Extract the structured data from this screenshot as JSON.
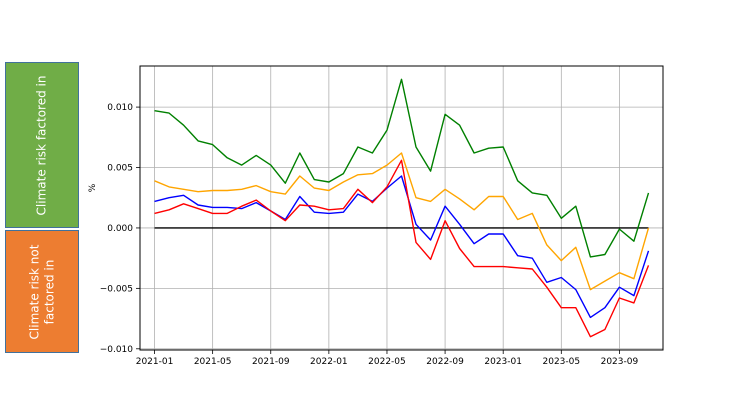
{
  "side_labels": {
    "top": {
      "text": "Climate risk factored in",
      "color": "#70ad47"
    },
    "bottom": {
      "line1": "Climate risk not",
      "line2": "factored in",
      "color": "#ed7d31"
    }
  },
  "chart_data": {
    "type": "line",
    "ylabel": "%",
    "xlabel": "",
    "title": "",
    "xlim": [
      "2020-12",
      "2023-12"
    ],
    "ylim": [
      -0.0101,
      0.0134
    ],
    "x_ticks": [
      "2021-01",
      "2021-05",
      "2021-09",
      "2022-01",
      "2022-05",
      "2022-09",
      "2023-01",
      "2023-05",
      "2023-09"
    ],
    "y_ticks": [
      -0.01,
      -0.005,
      0.0,
      0.005,
      0.01
    ],
    "y_tick_labels": [
      "−0.010",
      "−0.005",
      "0.000",
      "0.005",
      "0.010"
    ],
    "grid": true,
    "zero_line": {
      "y": 0,
      "color": "#000000"
    },
    "x": [
      "2021-01",
      "2021-02",
      "2021-03",
      "2021-04",
      "2021-05",
      "2021-06",
      "2021-07",
      "2021-08",
      "2021-09",
      "2021-10",
      "2021-11",
      "2021-12",
      "2022-01",
      "2022-02",
      "2022-03",
      "2022-04",
      "2022-05",
      "2022-06",
      "2022-07",
      "2022-08",
      "2022-09",
      "2022-10",
      "2022-11",
      "2022-12",
      "2023-01",
      "2023-02",
      "2023-03",
      "2023-04",
      "2023-05",
      "2023-06",
      "2023-07",
      "2023-08",
      "2023-09",
      "2023-10",
      "2023-11"
    ],
    "series": [
      {
        "color": "#008000",
        "values": [
          0.0097,
          0.0095,
          0.0085,
          0.0072,
          0.0069,
          0.0058,
          0.0052,
          0.006,
          0.0052,
          0.0037,
          0.0062,
          0.004,
          0.0038,
          0.0045,
          0.0067,
          0.0062,
          0.0081,
          0.0123,
          0.0067,
          0.0047,
          0.0094,
          0.0085,
          0.0062,
          0.0066,
          0.0067,
          0.0039,
          0.0029,
          0.0027,
          0.0008,
          0.0018,
          -0.0024,
          -0.0022,
          -0.0001,
          -0.0011,
          0.0029
        ]
      },
      {
        "color": "#ffa500",
        "values": [
          0.0039,
          0.0034,
          0.0032,
          0.003,
          0.0031,
          0.0031,
          0.0032,
          0.0035,
          0.003,
          0.0028,
          0.0043,
          0.0033,
          0.0031,
          0.0038,
          0.0044,
          0.0045,
          0.0052,
          0.0062,
          0.0025,
          0.0022,
          0.0032,
          0.0024,
          0.0015,
          0.0026,
          0.0026,
          0.0007,
          0.0012,
          -0.0014,
          -0.0027,
          -0.0016,
          -0.0051,
          -0.0044,
          -0.0037,
          -0.0042,
          0.0
        ]
      },
      {
        "color": "#0000ff",
        "values": [
          0.0022,
          0.0025,
          0.0027,
          0.0019,
          0.0017,
          0.0017,
          0.0016,
          0.0021,
          0.0014,
          0.0007,
          0.0026,
          0.0013,
          0.0012,
          0.0013,
          0.0028,
          0.0022,
          0.0033,
          0.0043,
          0.0003,
          -0.001,
          0.0018,
          0.0003,
          -0.0013,
          -0.0005,
          -0.0005,
          -0.0023,
          -0.0025,
          -0.0045,
          -0.0041,
          -0.0051,
          -0.0074,
          -0.0066,
          -0.0049,
          -0.0056,
          -0.0019
        ]
      },
      {
        "color": "#ff0000",
        "values": [
          0.0012,
          0.0015,
          0.002,
          0.0016,
          0.0012,
          0.0012,
          0.0018,
          0.0023,
          0.0014,
          0.0006,
          0.0019,
          0.0018,
          0.0015,
          0.0016,
          0.0032,
          0.0021,
          0.0034,
          0.0056,
          -0.0012,
          -0.0026,
          0.0006,
          -0.0017,
          -0.0032,
          -0.0032,
          -0.0032,
          -0.0033,
          -0.0034,
          -0.0049,
          -0.0066,
          -0.0066,
          -0.009,
          -0.0084,
          -0.0058,
          -0.0062,
          -0.0031
        ]
      }
    ]
  }
}
